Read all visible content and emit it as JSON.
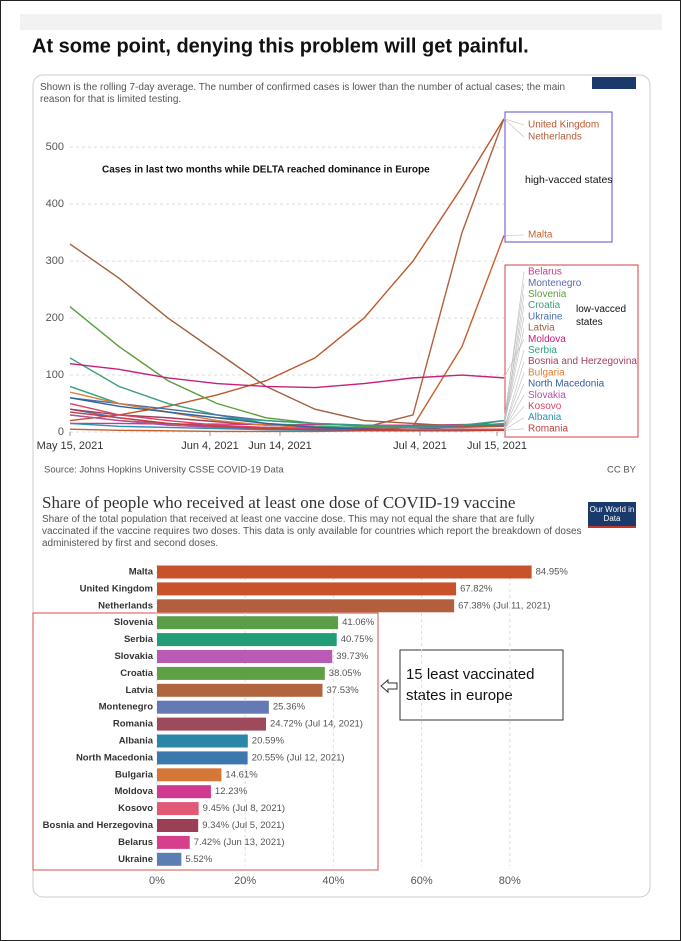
{
  "post": {
    "text": "At some point, denying this problem will get painful."
  },
  "chart_data": [
    {
      "type": "line",
      "subtitle": "Shown is the rolling 7-day average. The number of confirmed cases is lower than the number of actual cases; the main reason for that is limited testing.",
      "annotation": "Cases in last two months while DELTA reached dominance in Europe",
      "group_labels": [
        "high-vacced states",
        "low-vacced states"
      ],
      "source": "Source: Johns Hopkins University CSSE COVID-19 Data",
      "license": "CC BY",
      "x": [
        "2021-05-15",
        "2021-05-22",
        "2021-05-29",
        "2021-06-05",
        "2021-06-12",
        "2021-06-19",
        "2021-06-26",
        "2021-07-03",
        "2021-07-10",
        "2021-07-16"
      ],
      "xlim": [
        "2021-05-15",
        "2021-07-16"
      ],
      "xticks": [
        {
          "value": "2021-05-15",
          "label": "May 15, 2021"
        },
        {
          "value": "2021-06-04",
          "label": "Jun 4, 2021"
        },
        {
          "value": "2021-06-14",
          "label": "Jun 14, 2021"
        },
        {
          "value": "2021-07-04",
          "label": "Jul 4, 2021"
        },
        {
          "value": "2021-07-15",
          "label": "Jul 15, 2021"
        }
      ],
      "ylim": [
        0,
        560
      ],
      "yticks": [
        0,
        100,
        200,
        300,
        400,
        500
      ],
      "grid": true,
      "series": [
        {
          "name": "United Kingdom",
          "color": "#c0562a",
          "values": [
            20,
            30,
            45,
            65,
            90,
            130,
            200,
            300,
            430,
            550
          ]
        },
        {
          "name": "Netherlands",
          "color": "#b0603a",
          "values": [
            30,
            20,
            15,
            10,
            8,
            6,
            8,
            30,
            350,
            550
          ]
        },
        {
          "name": "Malta",
          "color": "#c86030",
          "values": [
            5,
            3,
            2,
            1,
            1,
            1,
            2,
            10,
            150,
            345
          ]
        },
        {
          "name": "Belarus",
          "color": "#d6338a",
          "values": [
            15,
            15,
            14,
            14,
            13,
            13,
            12,
            12,
            13,
            14
          ]
        },
        {
          "name": "Montenegro",
          "color": "#5a6ab0",
          "values": [
            40,
            25,
            15,
            10,
            8,
            6,
            5,
            5,
            10,
            20
          ]
        },
        {
          "name": "Slovenia",
          "color": "#5a9e3a",
          "values": [
            220,
            150,
            90,
            50,
            25,
            15,
            10,
            8,
            8,
            10
          ]
        },
        {
          "name": "Croatia",
          "color": "#3aa078",
          "values": [
            130,
            80,
            50,
            30,
            15,
            10,
            8,
            8,
            10,
            15
          ]
        },
        {
          "name": "Ukraine",
          "color": "#4a6ea8",
          "values": [
            60,
            50,
            40,
            30,
            20,
            15,
            12,
            10,
            10,
            12
          ]
        },
        {
          "name": "Latvia",
          "color": "#a06040",
          "values": [
            330,
            270,
            200,
            140,
            80,
            40,
            20,
            15,
            10,
            10
          ]
        },
        {
          "name": "Moldova",
          "color": "#c8207a",
          "values": [
            120,
            110,
            95,
            85,
            80,
            78,
            85,
            95,
            100,
            95
          ]
        },
        {
          "name": "Serbia",
          "color": "#30a080",
          "values": [
            80,
            50,
            35,
            25,
            20,
            15,
            12,
            10,
            12,
            20
          ]
        },
        {
          "name": "Bosnia and Herzegovina",
          "color": "#a04060",
          "values": [
            40,
            30,
            25,
            18,
            12,
            8,
            6,
            5,
            5,
            5
          ]
        },
        {
          "name": "Bulgaria",
          "color": "#e07b30",
          "values": [
            70,
            50,
            35,
            20,
            12,
            8,
            5,
            4,
            4,
            5
          ]
        },
        {
          "name": "North Macedonia",
          "color": "#3060a0",
          "values": [
            60,
            45,
            35,
            25,
            15,
            8,
            5,
            3,
            3,
            4
          ]
        },
        {
          "name": "Slovakia",
          "color": "#b050b0",
          "values": [
            30,
            20,
            12,
            8,
            5,
            3,
            2,
            2,
            3,
            4
          ]
        },
        {
          "name": "Kosovo",
          "color": "#e04060",
          "values": [
            50,
            30,
            20,
            12,
            8,
            5,
            3,
            3,
            4,
            5
          ]
        },
        {
          "name": "Albania",
          "color": "#3090b0",
          "values": [
            15,
            10,
            8,
            6,
            4,
            3,
            2,
            2,
            3,
            4
          ]
        },
        {
          "name": "Romania",
          "color": "#c0403a",
          "values": [
            35,
            25,
            15,
            10,
            6,
            4,
            3,
            2,
            2,
            3
          ]
        }
      ]
    },
    {
      "type": "hbar",
      "title": "Share of people who received at least one dose of COVID-19 vaccine",
      "subtitle": "Share of the total population that received at least one vaccine dose. This may not equal the share that are fully vaccinated if the vaccine requires two doses. This data is only available for countries which report the breakdown of doses administered by first and second doses.",
      "logo": "Our World in Data",
      "annotation": "15 least vaccinated states in europe",
      "categories": [
        "Malta",
        "United Kingdom",
        "Netherlands",
        "Slovenia",
        "Serbia",
        "Slovakia",
        "Croatia",
        "Latvia",
        "Montenegro",
        "Romania",
        "Albania",
        "North Macedonia",
        "Bulgaria",
        "Moldova",
        "Kosovo",
        "Bosnia and Herzegovina",
        "Belarus",
        "Ukraine"
      ],
      "values": [
        84.95,
        67.82,
        67.38,
        41.06,
        40.75,
        39.73,
        38.05,
        37.53,
        25.36,
        24.72,
        20.59,
        20.55,
        14.61,
        12.23,
        9.45,
        9.34,
        7.42,
        5.52
      ],
      "value_labels": [
        "84.95%",
        "67.82%",
        "67.38% (Jul 11, 2021)",
        "41.06%",
        "40.75%",
        "39.73%",
        "38.05%",
        "37.53%",
        "25.36%",
        "24.72% (Jul 14, 2021)",
        "20.59%",
        "20.55% (Jul 12, 2021)",
        "14.61%",
        "12.23%",
        "9.45% (Jul 8, 2021)",
        "9.34% (Jul 5, 2021)",
        "7.42% (Jun 13, 2021)",
        "5.52%"
      ],
      "colors": [
        "#c8532a",
        "#c8532a",
        "#b35f3e",
        "#5a9e4a",
        "#1f9e78",
        "#b95bb5",
        "#5fa045",
        "#b0653f",
        "#6479b5",
        "#9c4a5c",
        "#2b86a8",
        "#3b78ae",
        "#d6773a",
        "#d1388f",
        "#e05a76",
        "#9a3f55",
        "#d63f8c",
        "#5b7fb5"
      ],
      "xlim": [
        0,
        100
      ],
      "xticks": [
        {
          "value": 0,
          "label": "0%"
        },
        {
          "value": 20,
          "label": "20%"
        },
        {
          "value": 40,
          "label": "40%"
        },
        {
          "value": 60,
          "label": "60%"
        },
        {
          "value": 80,
          "label": "80%"
        }
      ],
      "grid": true
    }
  ]
}
